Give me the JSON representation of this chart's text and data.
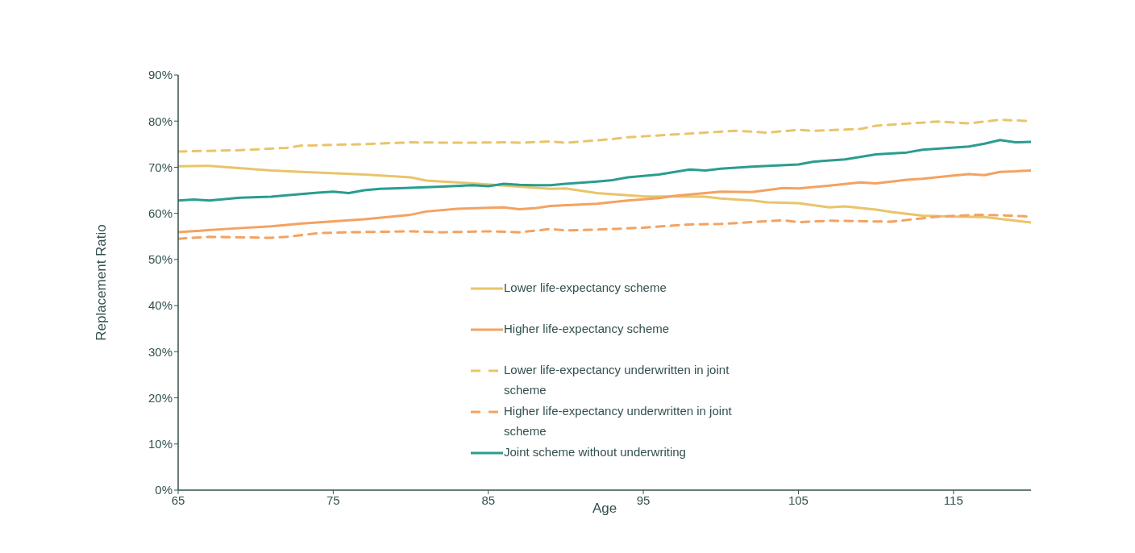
{
  "chart_data": {
    "type": "line",
    "xlabel": "Age",
    "ylabel": "Replacement Ratio",
    "xlim": [
      65,
      120
    ],
    "xticks": [
      65,
      75,
      85,
      95,
      105,
      115
    ],
    "ylim": [
      0,
      90
    ],
    "yticks": [
      {
        "value": 0,
        "label": "0%"
      },
      {
        "value": 10,
        "label": "10%"
      },
      {
        "value": 20,
        "label": "20%"
      },
      {
        "value": 30,
        "label": "30%"
      },
      {
        "value": 40,
        "label": "40%"
      },
      {
        "value": 50,
        "label": "50%"
      },
      {
        "value": 60,
        "label": "60%"
      },
      {
        "value": 70,
        "label": "70%"
      },
      {
        "value": 80,
        "label": "80%"
      },
      {
        "value": 90,
        "label": "90%"
      }
    ],
    "grid": false,
    "legend": "bottom",
    "marker": "none",
    "series": [
      {
        "name": "Lower life-expectancy scheme",
        "color": "#e9c46a",
        "line_style": "solid",
        "x": [
          65,
          67,
          71,
          73,
          77,
          80,
          81,
          83.6,
          85.7,
          89,
          90,
          92,
          94,
          95,
          99,
          100,
          102,
          103,
          105,
          107,
          108,
          110,
          111,
          113,
          115,
          117,
          119,
          120
        ],
        "values": [
          70.2,
          70.3,
          69.3,
          69.0,
          68.4,
          67.8,
          67.1,
          66.6,
          66.1,
          65.3,
          65.4,
          64.4,
          63.9,
          63.7,
          63.6,
          63.2,
          62.8,
          62.4,
          62.2,
          61.3,
          61.5,
          60.8,
          60.3,
          59.5,
          59.3,
          59.2,
          58.4,
          58.0
        ]
      },
      {
        "name": "Higher life-expectancy scheme",
        "color": "#f4a261",
        "line_style": "solid",
        "x": [
          65,
          68,
          71,
          73,
          77,
          80,
          81,
          83,
          85,
          86,
          87,
          88,
          89,
          92,
          94,
          96,
          97,
          99,
          100,
          102,
          104,
          105,
          107,
          109,
          110,
          112,
          113,
          115,
          116,
          117,
          118,
          119,
          120
        ],
        "values": [
          55.9,
          56.6,
          57.2,
          57.8,
          58.7,
          59.7,
          60.4,
          61.0,
          61.2,
          61.3,
          60.9,
          61.1,
          61.6,
          62.1,
          62.8,
          63.3,
          63.8,
          64.4,
          64.7,
          64.6,
          65.5,
          65.4,
          66.0,
          66.7,
          66.5,
          67.3,
          67.5,
          68.2,
          68.5,
          68.3,
          69.0,
          69.1,
          69.3
        ]
      },
      {
        "name": "Lower life-expectancy underwritten in joint scheme",
        "color": "#e9c46a",
        "line_style": "dashed",
        "x": [
          65,
          69,
          72,
          73,
          77,
          80,
          83,
          86,
          87,
          89,
          90,
          93,
          94,
          97,
          101,
          103,
          105,
          106,
          109,
          110,
          114,
          116,
          118,
          120
        ],
        "values": [
          73.4,
          73.7,
          74.2,
          74.7,
          75.0,
          75.4,
          75.3,
          75.4,
          75.3,
          75.6,
          75.3,
          76.1,
          76.5,
          77.1,
          77.9,
          77.5,
          78.1,
          77.9,
          78.3,
          79.0,
          79.9,
          79.5,
          80.3,
          80.0
        ]
      },
      {
        "name": "Higher life-expectancy underwritten in joint scheme",
        "color": "#f4a261",
        "line_style": "dashed",
        "x": [
          65,
          67,
          71,
          72,
          74,
          76,
          80,
          82,
          85,
          87,
          89,
          90,
          93,
          95,
          98,
          100,
          104,
          105,
          107,
          111,
          114,
          116.7,
          118,
          120
        ],
        "values": [
          54.5,
          54.9,
          54.7,
          54.9,
          55.7,
          55.9,
          56.1,
          55.9,
          56.1,
          55.9,
          56.6,
          56.3,
          56.6,
          56.9,
          57.6,
          57.7,
          58.5,
          58.1,
          58.4,
          58.2,
          59.3,
          59.7,
          59.6,
          59.3
        ]
      },
      {
        "name": "Joint scheme without underwriting",
        "color": "#2a9d8f",
        "line_style": "solid",
        "x": [
          65,
          66,
          67,
          69,
          71,
          72,
          74,
          75,
          76,
          77,
          78,
          82,
          84,
          85,
          86,
          87,
          88,
          89,
          90,
          92,
          93,
          94,
          96,
          98,
          99,
          100,
          102,
          105,
          106,
          108,
          110,
          112,
          113,
          116,
          117,
          118,
          119,
          120
        ],
        "values": [
          62.8,
          63.0,
          62.8,
          63.4,
          63.6,
          63.9,
          64.5,
          64.7,
          64.4,
          65.0,
          65.3,
          65.8,
          66.1,
          65.9,
          66.4,
          66.2,
          66.1,
          66.1,
          66.4,
          66.9,
          67.2,
          67.8,
          68.4,
          69.5,
          69.3,
          69.7,
          70.1,
          70.6,
          71.2,
          71.7,
          72.8,
          73.2,
          73.8,
          74.5,
          75.1,
          75.9,
          75.4,
          75.5
        ]
      }
    ]
  }
}
